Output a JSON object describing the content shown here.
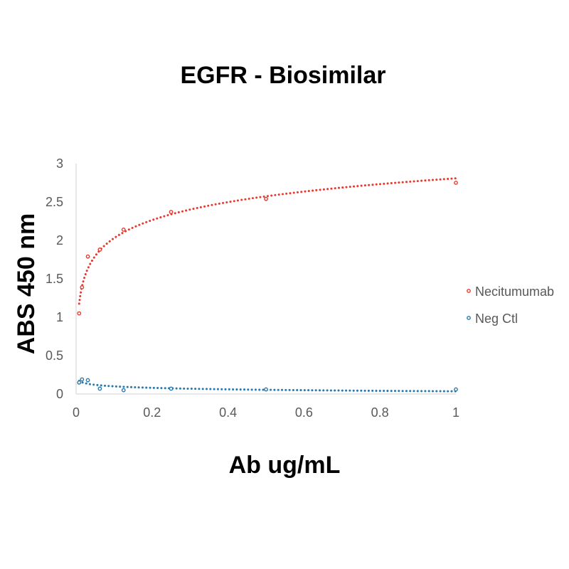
{
  "chart_data": {
    "type": "scatter",
    "title": "EGFR - Biosimilar",
    "xlabel": "Ab ug/mL",
    "ylabel": "ABS 450 nm",
    "xlim": [
      0,
      1
    ],
    "ylim": [
      0,
      3
    ],
    "xticks": [
      "0",
      "0.2",
      "0.4",
      "0.6",
      "0.8",
      "1"
    ],
    "yticks": [
      "0",
      "0.5",
      "1",
      "1.5",
      "2",
      "2.5",
      "3"
    ],
    "grid": false,
    "legend_position": "right",
    "trendline": "logarithmic, dotted",
    "series": [
      {
        "name": "Necitumumab",
        "color": "#e8392e",
        "x": [
          0.008,
          0.0156,
          0.031,
          0.0625,
          0.125,
          0.25,
          0.5,
          1.0
        ],
        "y": [
          1.05,
          1.39,
          1.79,
          1.88,
          2.14,
          2.37,
          2.54,
          2.75
        ],
        "trend_start": 0.008
      },
      {
        "name": "Neg Ctl",
        "color": "#2a7ab0",
        "x": [
          0.008,
          0.0156,
          0.031,
          0.0625,
          0.125,
          0.25,
          0.5,
          1.0
        ],
        "y": [
          0.15,
          0.19,
          0.18,
          0.07,
          0.05,
          0.07,
          0.06,
          0.06
        ],
        "trend_start": 0.008
      }
    ]
  }
}
